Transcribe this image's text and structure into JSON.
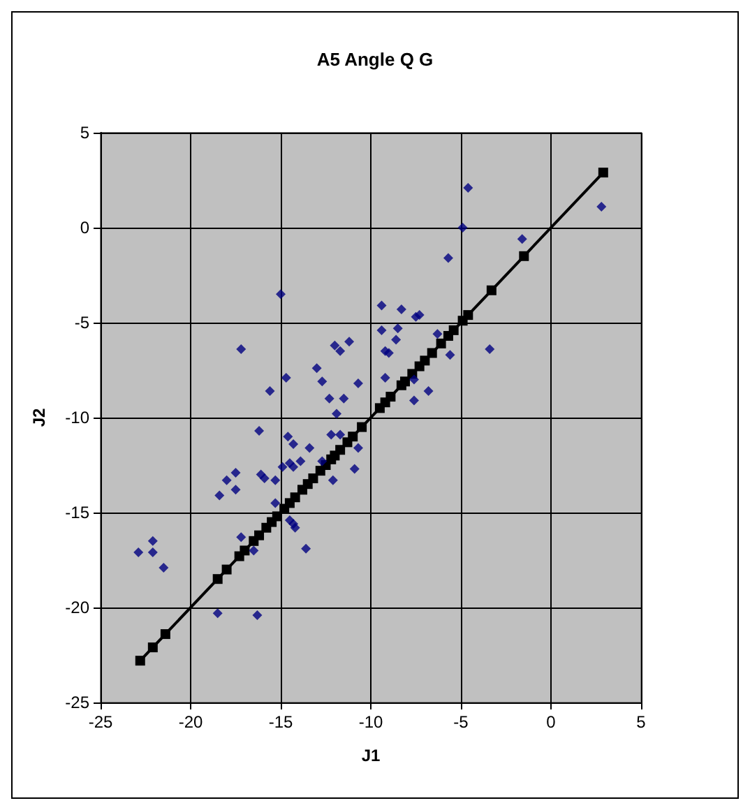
{
  "chart_data": {
    "type": "scatter",
    "title": "A5 Angle Q G",
    "xlabel": "J1",
    "ylabel": "J2",
    "xlim": [
      -25,
      5
    ],
    "ylim": [
      -25,
      5
    ],
    "xticks": [
      -25,
      -20,
      -15,
      -10,
      -5,
      0,
      5
    ],
    "yticks": [
      -25,
      -20,
      -15,
      -10,
      -5,
      0,
      5
    ],
    "grid": true,
    "marker": "diamond",
    "series": [
      {
        "color": "#000080",
        "x": [
          -15.0,
          -17.2,
          -12.0,
          -11.7,
          -11.2,
          -13.0,
          -12.7,
          -14.7,
          -15.6,
          -10.7,
          -12.3,
          -11.5,
          2.8,
          -4.6,
          -4.9,
          -1.6,
          -5.7,
          -3.4,
          -5.6,
          -9.4,
          -8.3,
          -7.5,
          -7.3,
          -9.4,
          -8.5,
          -8.6,
          -6.3,
          -9.2,
          -9.0,
          -9.2,
          -7.6,
          -6.8,
          -7.6,
          -11.9,
          -16.2,
          -12.2,
          -11.7,
          -14.6,
          -14.3,
          -13.4,
          -10.7,
          -14.9,
          -14.5,
          -14.3,
          -13.9,
          -12.7,
          -12.1,
          -10.9,
          -17.5,
          -18.0,
          -17.5,
          -18.4,
          -16.1,
          -15.9,
          -15.3,
          -15.3,
          -14.5,
          -14.3,
          -14.2,
          -13.6,
          -17.2,
          -16.5,
          -22.1,
          -22.9,
          -22.1,
          -21.5,
          -18.5,
          -16.3
        ],
        "values": [
          -3.5,
          -6.4,
          -6.2,
          -6.5,
          -6.0,
          -7.4,
          -8.1,
          -7.9,
          -8.6,
          -8.2,
          -9.0,
          -9.0,
          1.1,
          2.1,
          0.0,
          -0.6,
          -1.6,
          -6.4,
          -6.7,
          -4.1,
          -4.3,
          -4.7,
          -4.6,
          -5.4,
          -5.3,
          -5.9,
          -5.6,
          -6.5,
          -6.6,
          -7.9,
          -8.0,
          -8.6,
          -9.1,
          -9.8,
          -10.7,
          -10.9,
          -10.9,
          -11.0,
          -11.4,
          -11.6,
          -11.6,
          -12.6,
          -12.4,
          -12.6,
          -12.3,
          -12.3,
          -13.3,
          -12.7,
          -12.9,
          -13.3,
          -13.8,
          -14.1,
          -13.0,
          -13.2,
          -13.3,
          -14.5,
          -15.4,
          -15.6,
          -15.8,
          -16.9,
          -16.3,
          -17.0,
          -16.5,
          -17.1,
          -17.1,
          -17.9,
          -20.3,
          -20.4
        ]
      },
      {
        "type": "line",
        "color": "#000000",
        "marker": "square",
        "line_style": "solid",
        "x": [
          -22.8,
          -22.1,
          -21.4,
          -18.5,
          -18.0,
          -17.3,
          -17.0,
          -16.5,
          -16.2,
          -15.8,
          -15.5,
          -15.2,
          -14.8,
          -14.5,
          -14.2,
          -13.8,
          -13.5,
          -13.2,
          -12.8,
          -12.5,
          -12.2,
          -12.0,
          -11.7,
          -11.3,
          -11.0,
          -10.5,
          -9.5,
          -9.2,
          -8.9,
          -8.3,
          -8.1,
          -7.7,
          -7.3,
          -7.0,
          -6.6,
          -6.1,
          -5.7,
          -5.4,
          -4.9,
          -4.6,
          -3.3,
          -1.5,
          2.9
        ],
        "values": [
          -22.8,
          -22.1,
          -21.4,
          -18.5,
          -18.0,
          -17.3,
          -17.0,
          -16.5,
          -16.2,
          -15.8,
          -15.5,
          -15.2,
          -14.8,
          -14.5,
          -14.2,
          -13.8,
          -13.5,
          -13.2,
          -12.8,
          -12.5,
          -12.2,
          -12.0,
          -11.7,
          -11.3,
          -11.0,
          -10.5,
          -9.5,
          -9.2,
          -8.9,
          -8.3,
          -8.1,
          -7.7,
          -7.3,
          -7.0,
          -6.6,
          -6.1,
          -5.7,
          -5.4,
          -4.9,
          -4.6,
          -3.3,
          -1.5,
          2.9
        ]
      }
    ]
  }
}
